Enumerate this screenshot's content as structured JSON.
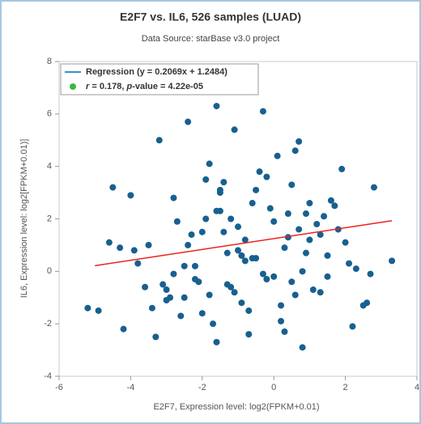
{
  "chart_data": {
    "type": "scatter",
    "title": "E2F7 vs. IL6, 526 samples (LUAD)",
    "subtitle": "Data Source: starBase v3.0 project",
    "x_label": "E2F7, Expression level: log2(FPKM+0.01)",
    "y_label": "IL6, Expression level: log2[FPKM+0.01)]",
    "xlim": [
      -6,
      4
    ],
    "xticks": [
      -6,
      -4,
      -2,
      0,
      2,
      4
    ],
    "ylim": [
      -4,
      8
    ],
    "yticks": [
      -4,
      -2,
      0,
      2,
      4,
      6,
      8
    ],
    "series": [
      {
        "color": "#17608f",
        "x": [
          -1.6,
          -0.3,
          -2.4,
          -1.1,
          0.7,
          -3.2,
          2.8,
          3.3,
          -5.2,
          -4.9,
          -4.5,
          0.8,
          2.2,
          -1.6,
          -3.3,
          -4.2,
          2.5,
          2.7,
          -2.0,
          -1.5,
          -1.0,
          -0.5,
          0.0,
          0.5,
          1.0,
          -2.5,
          -3.0,
          -1.8,
          -1.2,
          -0.8,
          -0.2,
          0.3,
          1.3,
          1.8,
          -3.5,
          -2.8,
          -2.2,
          -1.4,
          -0.6,
          0.2,
          0.9,
          1.5,
          2.0,
          -3.8,
          -2.6,
          -1.9,
          -1.3,
          -0.7,
          -0.1,
          0.6,
          1.2,
          -4.0,
          -3.1,
          -2.3,
          -1.7,
          -0.9,
          -0.4,
          0.4,
          1.1,
          1.7,
          2.3,
          -2.9,
          -2.1,
          -1.5,
          -1.0,
          -0.3,
          0.1,
          0.8,
          1.4,
          -3.6,
          -2.7,
          -2.0,
          -1.4,
          -0.8,
          0.0,
          0.5,
          1.6,
          2.6,
          -4.3,
          -3.4,
          -2.4,
          -1.6,
          -1.1,
          -0.5,
          0.3,
          1.0,
          1.9,
          -2.2,
          -1.3,
          -0.6,
          0.2,
          0.7,
          -3.9,
          -2.5,
          -1.8,
          -1.2,
          -0.2,
          0.6,
          1.3,
          2.1,
          -3.0,
          -1.9,
          -0.9,
          0.4,
          1.5,
          -4.6,
          -2.8,
          -1.5,
          -0.7,
          0.9
        ],
        "values": [
          6.3,
          6.1,
          5.7,
          5.4,
          4.95,
          5.0,
          3.2,
          0.4,
          -1.4,
          -1.5,
          3.2,
          -2.9,
          -2.1,
          -2.7,
          -2.5,
          -2.2,
          -1.3,
          -0.1,
          1.5,
          2.3,
          0.8,
          3.1,
          1.9,
          -0.4,
          2.6,
          0.2,
          -1.1,
          4.1,
          -0.6,
          1.2,
          3.6,
          0.9,
          -0.8,
          1.6,
          1.0,
          2.8,
          -0.3,
          3.4,
          0.5,
          -1.3,
          2.2,
          -0.2,
          1.1,
          0.3,
          -1.7,
          2.0,
          0.7,
          -1.5,
          2.4,
          -0.9,
          1.8,
          2.9,
          -0.5,
          1.4,
          -2.0,
          0.6,
          3.8,
          1.3,
          -0.7,
          2.5,
          0.1,
          -1.0,
          -0.4,
          3.0,
          1.7,
          -0.1,
          4.4,
          0.0,
          2.1,
          -0.6,
          1.9,
          -1.6,
          1.5,
          0.4,
          -0.2,
          3.3,
          2.7,
          -1.2,
          0.9,
          -1.4,
          1.0,
          2.3,
          -0.8,
          0.5,
          -2.3,
          1.2,
          3.9,
          0.2,
          -0.5,
          2.6,
          -1.9,
          1.6,
          0.8,
          -1.0,
          -0.9,
          2.0,
          -0.3,
          4.6,
          1.4,
          0.3,
          -0.7,
          3.5,
          -1.2,
          2.2,
          0.6,
          1.1,
          -0.1,
          3.1,
          -2.4,
          0.7
        ]
      }
    ],
    "regression": {
      "name": "Regression (y = 0.2069x + 1.2484)",
      "color": "#e8231f",
      "legend_color": "#3a8fc8",
      "x": [
        -5.0,
        3.3
      ],
      "values": [
        0.214,
        1.931
      ]
    },
    "stats": {
      "r": "r",
      "r_text": " = 0.178, ",
      "p": "p",
      "p_text": "-value = 4.22e-05",
      "color": "#3cb83c"
    }
  }
}
